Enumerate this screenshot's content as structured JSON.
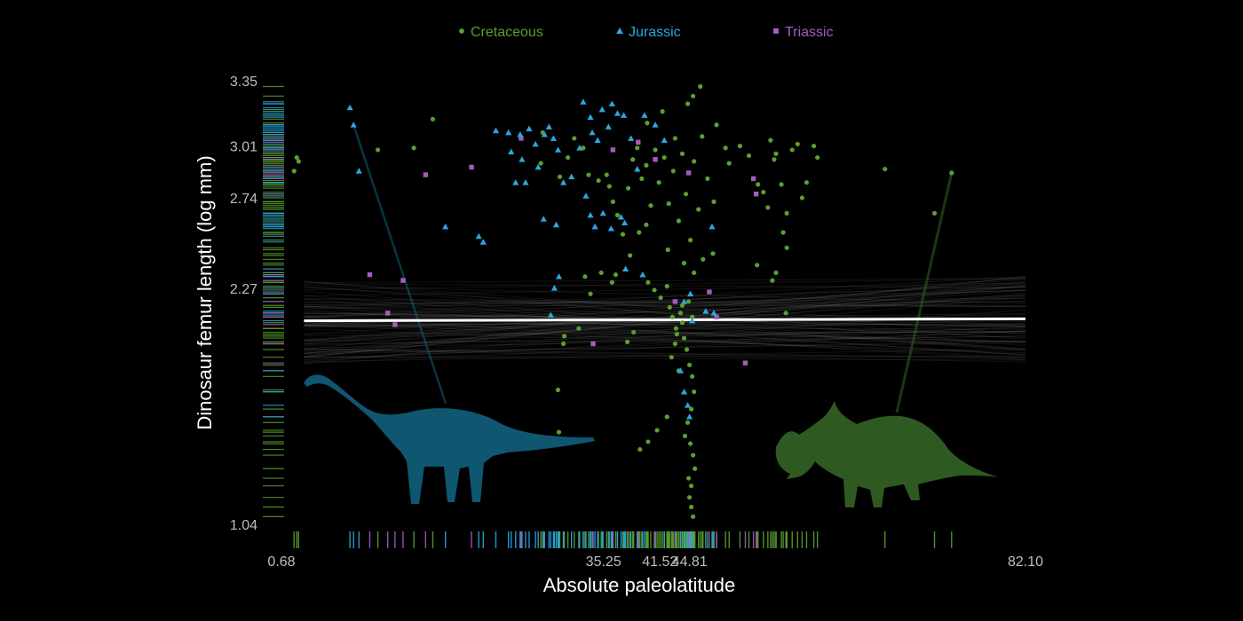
{
  "chart_data": {
    "type": "scatter",
    "title": "",
    "xlabel": "Absolute paleolatitude",
    "ylabel": "Dinosaur femur length (log mm)",
    "xlim": [
      0.68,
      82.1
    ],
    "ylim": [
      1.04,
      3.35
    ],
    "x_ticks": [
      "0.68",
      "35.25",
      "41.52",
      "44.81",
      "82.10"
    ],
    "y_ticks": [
      "1.04",
      "2.27",
      "2.74",
      "3.01",
      "3.35"
    ],
    "legend_position": "top",
    "grid": false,
    "regression": {
      "x": [
        2.0,
        82.1
      ],
      "y": [
        2.1,
        2.11
      ]
    },
    "series": [
      {
        "name": "Cretaceous",
        "marker": "circle",
        "color": "#5aa02c",
        "points": [
          [
            1.2,
            2.95
          ],
          [
            1.4,
            2.93
          ],
          [
            0.9,
            2.88
          ],
          [
            10.2,
            2.99
          ],
          [
            16.3,
            3.15
          ],
          [
            14.2,
            3.0
          ],
          [
            28.5,
            3.08
          ],
          [
            28.3,
            2.92
          ],
          [
            30.4,
            2.85
          ],
          [
            31.3,
            2.95
          ],
          [
            32.0,
            3.05
          ],
          [
            33.0,
            3.0
          ],
          [
            33.6,
            2.86
          ],
          [
            34.7,
            2.83
          ],
          [
            35.6,
            2.86
          ],
          [
            35.9,
            2.8
          ],
          [
            36.3,
            2.72
          ],
          [
            36.8,
            2.65
          ],
          [
            37.4,
            2.55
          ],
          [
            38.0,
            2.79
          ],
          [
            38.5,
            2.94
          ],
          [
            39.0,
            3.0
          ],
          [
            39.5,
            2.84
          ],
          [
            40.0,
            2.91
          ],
          [
            40.5,
            2.7
          ],
          [
            41.0,
            2.99
          ],
          [
            41.4,
            2.82
          ],
          [
            42.0,
            2.95
          ],
          [
            42.5,
            2.71
          ],
          [
            43.0,
            2.88
          ],
          [
            43.6,
            2.62
          ],
          [
            44.0,
            2.97
          ],
          [
            44.4,
            2.76
          ],
          [
            44.9,
            2.52
          ],
          [
            45.3,
            2.93
          ],
          [
            45.8,
            2.68
          ],
          [
            46.2,
            3.06
          ],
          [
            46.8,
            2.84
          ],
          [
            47.5,
            2.72
          ],
          [
            40.1,
            3.13
          ],
          [
            41.8,
            3.19
          ],
          [
            43.2,
            3.05
          ],
          [
            44.6,
            3.23
          ],
          [
            45.2,
            3.27
          ],
          [
            46.0,
            3.32
          ],
          [
            47.8,
            3.12
          ],
          [
            48.8,
            3.0
          ],
          [
            49.2,
            2.92
          ],
          [
            50.4,
            3.01
          ],
          [
            51.4,
            2.96
          ],
          [
            52.4,
            2.81
          ],
          [
            53.0,
            2.77
          ],
          [
            53.5,
            2.69
          ],
          [
            54.2,
            2.94
          ],
          [
            55.0,
            2.81
          ],
          [
            55.6,
            2.66
          ],
          [
            56.2,
            2.99
          ],
          [
            56.8,
            3.02
          ],
          [
            57.3,
            2.74
          ],
          [
            57.8,
            2.82
          ],
          [
            58.6,
            3.01
          ],
          [
            59.0,
            2.95
          ],
          [
            53.8,
            3.04
          ],
          [
            54.4,
            2.97
          ],
          [
            40.2,
            2.3
          ],
          [
            40.9,
            2.26
          ],
          [
            41.6,
            2.22
          ],
          [
            42.3,
            2.28
          ],
          [
            42.6,
            2.17
          ],
          [
            42.9,
            2.12
          ],
          [
            43.3,
            2.06
          ],
          [
            43.8,
            2.14
          ],
          [
            44.0,
            2.09
          ],
          [
            44.2,
            2.01
          ],
          [
            44.5,
            1.95
          ],
          [
            44.8,
            1.87
          ],
          [
            45.1,
            1.81
          ],
          [
            45.3,
            1.73
          ],
          [
            45.0,
            1.64
          ],
          [
            44.6,
            1.57
          ],
          [
            44.3,
            1.5
          ],
          [
            44.9,
            1.46
          ],
          [
            45.2,
            1.4
          ],
          [
            45.4,
            1.33
          ],
          [
            44.7,
            1.28
          ],
          [
            45.0,
            1.24
          ],
          [
            44.8,
            1.18
          ],
          [
            45.0,
            1.13
          ],
          [
            45.2,
            1.08
          ],
          [
            42.3,
            1.6
          ],
          [
            41.2,
            1.53
          ],
          [
            40.2,
            1.47
          ],
          [
            39.3,
            1.43
          ],
          [
            43.2,
            1.98
          ],
          [
            42.8,
            1.91
          ],
          [
            43.6,
            1.84
          ],
          [
            44.0,
            2.18
          ],
          [
            44.7,
            2.2
          ],
          [
            45.1,
            2.12
          ],
          [
            43.4,
            2.03
          ],
          [
            38.6,
            2.04
          ],
          [
            37.9,
            1.99
          ],
          [
            32.5,
            2.06
          ],
          [
            30.9,
            2.02
          ],
          [
            30.8,
            1.98
          ],
          [
            30.2,
            1.74
          ],
          [
            30.3,
            1.52
          ],
          [
            33.2,
            2.33
          ],
          [
            33.8,
            2.24
          ],
          [
            35.0,
            2.35
          ],
          [
            36.2,
            2.3
          ],
          [
            36.6,
            2.34
          ],
          [
            38.2,
            2.44
          ],
          [
            39.2,
            2.56
          ],
          [
            40.0,
            2.6
          ],
          [
            42.4,
            2.47
          ],
          [
            44.2,
            2.4
          ],
          [
            45.3,
            2.35
          ],
          [
            46.3,
            2.42
          ],
          [
            47.4,
            2.45
          ],
          [
            55.2,
            2.56
          ],
          [
            55.6,
            2.48
          ],
          [
            54.4,
            2.35
          ],
          [
            54.0,
            2.31
          ],
          [
            55.5,
            2.14
          ],
          [
            52.3,
            2.39
          ],
          [
            66.5,
            2.89
          ],
          [
            72.0,
            2.66
          ],
          [
            73.9,
            2.87
          ]
        ]
      },
      {
        "name": "Jurassic",
        "marker": "triangle",
        "color": "#29a8e0",
        "points": [
          [
            7.1,
            3.21
          ],
          [
            7.5,
            3.12
          ],
          [
            8.1,
            2.88
          ],
          [
            17.7,
            2.59
          ],
          [
            21.4,
            2.54
          ],
          [
            21.9,
            2.51
          ],
          [
            23.3,
            3.09
          ],
          [
            24.7,
            3.08
          ],
          [
            25.0,
            2.98
          ],
          [
            25.5,
            2.82
          ],
          [
            26.0,
            3.07
          ],
          [
            26.2,
            2.94
          ],
          [
            26.6,
            2.82
          ],
          [
            27.0,
            3.1
          ],
          [
            27.7,
            3.02
          ],
          [
            28.0,
            2.9
          ],
          [
            28.7,
            3.07
          ],
          [
            29.2,
            3.11
          ],
          [
            29.7,
            3.05
          ],
          [
            30.2,
            2.99
          ],
          [
            30.8,
            2.82
          ],
          [
            31.7,
            2.85
          ],
          [
            32.6,
            3.0
          ],
          [
            33.0,
            3.24
          ],
          [
            33.8,
            3.16
          ],
          [
            34.0,
            3.08
          ],
          [
            34.6,
            3.04
          ],
          [
            35.1,
            3.2
          ],
          [
            35.8,
            3.11
          ],
          [
            36.2,
            3.23
          ],
          [
            36.8,
            3.18
          ],
          [
            37.5,
            3.17
          ],
          [
            38.3,
            3.05
          ],
          [
            39.0,
            2.89
          ],
          [
            39.8,
            3.17
          ],
          [
            41.0,
            3.12
          ],
          [
            42.0,
            3.04
          ],
          [
            33.3,
            2.75
          ],
          [
            33.8,
            2.65
          ],
          [
            34.3,
            2.59
          ],
          [
            35.2,
            2.66
          ],
          [
            36.1,
            2.58
          ],
          [
            37.2,
            2.64
          ],
          [
            37.6,
            2.61
          ],
          [
            28.6,
            2.63
          ],
          [
            30.0,
            2.6
          ],
          [
            29.8,
            2.27
          ],
          [
            29.4,
            2.13
          ],
          [
            30.3,
            2.33
          ],
          [
            37.7,
            2.37
          ],
          [
            39.6,
            2.34
          ],
          [
            43.8,
            1.84
          ],
          [
            44.2,
            1.73
          ],
          [
            44.6,
            1.66
          ],
          [
            44.8,
            1.6
          ],
          [
            45.1,
            2.1
          ],
          [
            44.2,
            2.2
          ],
          [
            47.3,
            2.59
          ],
          [
            46.6,
            2.15
          ],
          [
            47.5,
            2.14
          ],
          [
            44.9,
            2.24
          ]
        ]
      },
      {
        "name": "Triassic",
        "marker": "square",
        "color": "#a55bc0",
        "points": [
          [
            9.3,
            2.34
          ],
          [
            12.1,
            2.08
          ],
          [
            11.3,
            2.14
          ],
          [
            13.0,
            2.31
          ],
          [
            20.6,
            2.9
          ],
          [
            15.5,
            2.86
          ],
          [
            26.1,
            3.05
          ],
          [
            34.1,
            1.98
          ],
          [
            36.3,
            2.99
          ],
          [
            39.1,
            3.03
          ],
          [
            41.0,
            2.94
          ],
          [
            43.2,
            2.2
          ],
          [
            47.0,
            2.25
          ],
          [
            47.8,
            2.12
          ],
          [
            51.9,
            2.84
          ],
          [
            52.2,
            2.76
          ],
          [
            51.0,
            1.88
          ],
          [
            44.7,
            2.87
          ]
        ]
      }
    ],
    "silhouettes": [
      {
        "name": "sauropod",
        "color": "#0f5671"
      },
      {
        "name": "ceratopsian",
        "color": "#2e5a22"
      }
    ]
  }
}
